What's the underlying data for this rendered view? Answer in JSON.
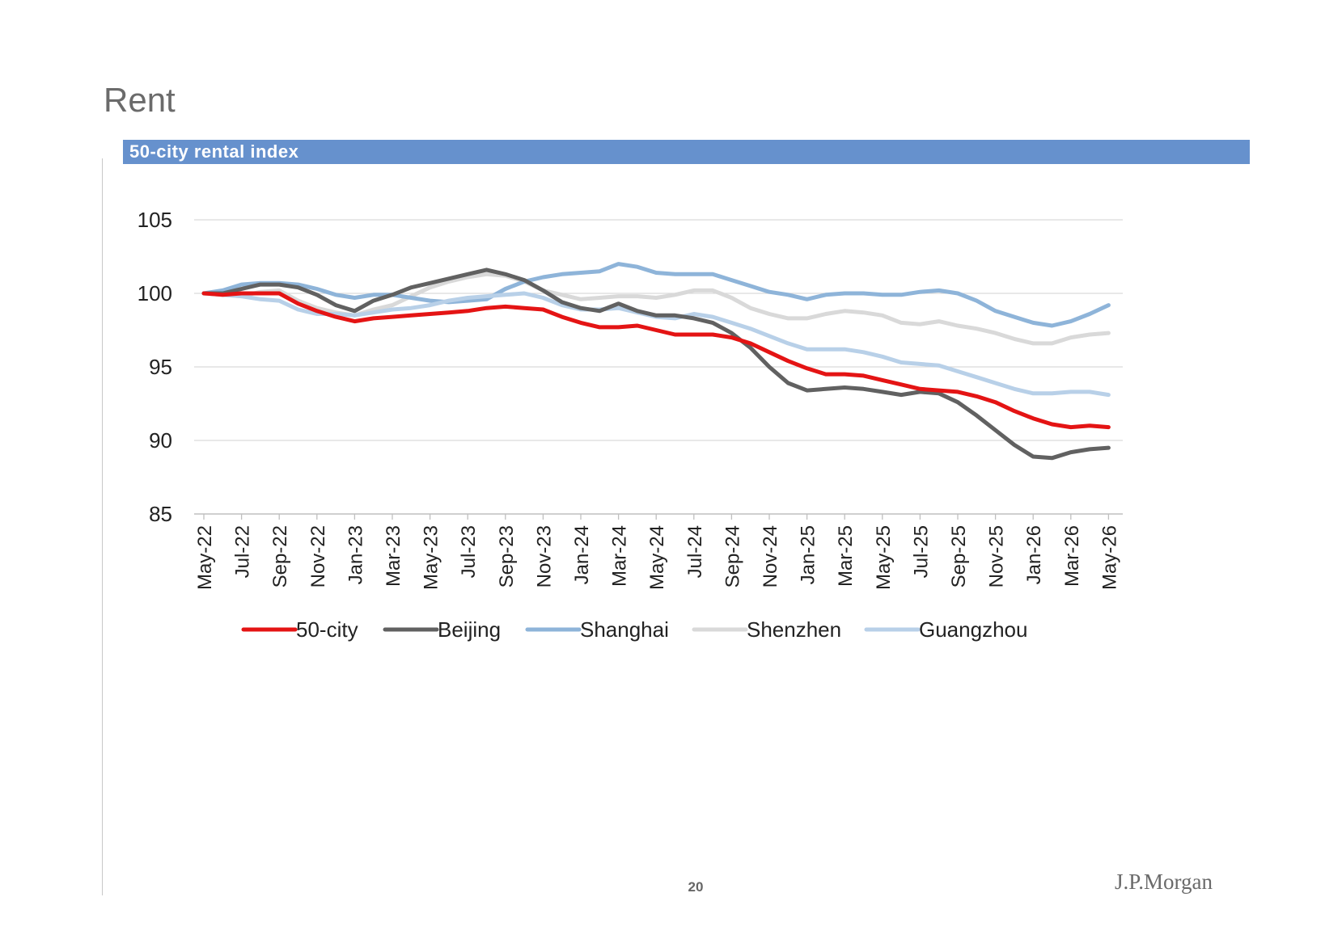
{
  "page": {
    "title": "Rent",
    "page_number": "20",
    "brand": "J.P.Morgan"
  },
  "chart_data": {
    "type": "line",
    "title": "50-city rental index",
    "xlabel": "",
    "ylabel": "",
    "ylim": [
      85,
      105
    ],
    "yticks": [
      "85",
      "90",
      "95",
      "100",
      "105"
    ],
    "grid": true,
    "legend_position": "bottom",
    "tick_labels": [
      "May-22",
      "Jul-22",
      "Sep-22",
      "Nov-22",
      "Jan-23",
      "Mar-23",
      "May-23",
      "Jul-23",
      "Sep-23",
      "Nov-23",
      "Jan-24",
      "Mar-24",
      "May-24",
      "Jul-24",
      "Sep-24",
      "Nov-24",
      "Jan-25",
      "Mar-25",
      "May-25",
      "Jul-25",
      "Sep-25",
      "Nov-25",
      "Jan-26",
      "Mar-26",
      "May-26"
    ],
    "x": [
      "May-22",
      "Jun-22",
      "Jul-22",
      "Aug-22",
      "Sep-22",
      "Oct-22",
      "Nov-22",
      "Dec-22",
      "Jan-23",
      "Feb-23",
      "Mar-23",
      "Apr-23",
      "May-23",
      "Jun-23",
      "Jul-23",
      "Aug-23",
      "Sep-23",
      "Oct-23",
      "Nov-23",
      "Dec-23",
      "Jan-24",
      "Feb-24",
      "Mar-24",
      "Apr-24",
      "May-24",
      "Jun-24",
      "Jul-24",
      "Aug-24",
      "Sep-24",
      "Oct-24",
      "Nov-24",
      "Dec-24",
      "Jan-25",
      "Feb-25",
      "Mar-25",
      "Apr-25",
      "May-25",
      "Jun-25",
      "Jul-25",
      "Aug-25",
      "Sep-25",
      "Oct-25",
      "Nov-25",
      "Dec-25",
      "Jan-26",
      "Feb-26",
      "Mar-26",
      "Apr-26",
      "May-26"
    ],
    "series": [
      {
        "name": "Shenzhen",
        "color": "#d9d9d9",
        "values": [
          100,
          99.9,
          99.8,
          100.1,
          100.2,
          99.5,
          99,
          98.7,
          98.5,
          98.9,
          99.2,
          99.8,
          100.4,
          100.8,
          101.1,
          101.3,
          101.2,
          100.8,
          100.2,
          99.9,
          99.6,
          99.7,
          99.8,
          99.8,
          99.7,
          99.9,
          100.2,
          100.2,
          99.7,
          99,
          98.6,
          98.3,
          98.3,
          98.6,
          98.8,
          98.7,
          98.5,
          98,
          97.9,
          98.1,
          97.8,
          97.6,
          97.3,
          96.9,
          96.6,
          96.6,
          97,
          97.2,
          97.3
        ]
      },
      {
        "name": "Shanghai",
        "color": "#8eb4d9",
        "values": [
          100,
          100.2,
          100.6,
          100.7,
          100.7,
          100.6,
          100.3,
          99.9,
          99.7,
          99.9,
          99.9,
          99.7,
          99.5,
          99.4,
          99.5,
          99.6,
          100.3,
          100.8,
          101.1,
          101.3,
          101.4,
          101.5,
          102,
          101.8,
          101.4,
          101.3,
          101.3,
          101.3,
          100.9,
          100.5,
          100.1,
          99.9,
          99.6,
          99.9,
          100,
          100,
          99.9,
          99.9,
          100.1,
          100.2,
          100,
          99.5,
          98.8,
          98.4,
          98,
          97.8,
          98.1,
          98.6,
          99.2
        ]
      },
      {
        "name": "Guangzhou",
        "color": "#b8d0e8",
        "values": [
          100,
          99.9,
          99.8,
          99.6,
          99.5,
          98.9,
          98.6,
          98.6,
          98.5,
          98.7,
          98.9,
          99,
          99.2,
          99.5,
          99.7,
          99.8,
          99.9,
          100,
          99.7,
          99.2,
          98.9,
          98.9,
          99,
          98.7,
          98.4,
          98.3,
          98.6,
          98.4,
          98,
          97.6,
          97.1,
          96.6,
          96.2,
          96.2,
          96.2,
          96,
          95.7,
          95.3,
          95.2,
          95.1,
          94.7,
          94.3,
          93.9,
          93.5,
          93.2,
          93.2,
          93.3,
          93.3,
          93.1
        ]
      },
      {
        "name": "Beijing",
        "color": "#616161",
        "values": [
          100,
          100,
          100.3,
          100.6,
          100.6,
          100.4,
          99.9,
          99.2,
          98.8,
          99.5,
          99.9,
          100.4,
          100.7,
          101,
          101.3,
          101.6,
          101.3,
          100.9,
          100.2,
          99.4,
          99,
          98.8,
          99.3,
          98.8,
          98.5,
          98.5,
          98.3,
          98,
          97.3,
          96.3,
          95,
          93.9,
          93.4,
          93.5,
          93.6,
          93.5,
          93.3,
          93.1,
          93.3,
          93.2,
          92.6,
          91.7,
          90.7,
          89.7,
          88.9,
          88.8,
          89.2,
          89.4,
          89.5
        ]
      },
      {
        "name": "50-city",
        "color": "#e41414",
        "values": [
          100,
          99.9,
          100,
          100,
          100,
          99.3,
          98.8,
          98.4,
          98.1,
          98.3,
          98.4,
          98.5,
          98.6,
          98.7,
          98.8,
          99,
          99.1,
          99,
          98.9,
          98.4,
          98,
          97.7,
          97.7,
          97.8,
          97.5,
          97.2,
          97.2,
          97.2,
          97,
          96.6,
          96,
          95.4,
          94.9,
          94.5,
          94.5,
          94.4,
          94.1,
          93.8,
          93.5,
          93.4,
          93.3,
          93,
          92.6,
          92,
          91.5,
          91.1,
          90.9,
          91,
          90.9
        ]
      }
    ],
    "legend_order": [
      "50-city",
      "Beijing",
      "Shanghai",
      "Shenzhen",
      "Guangzhou"
    ]
  }
}
